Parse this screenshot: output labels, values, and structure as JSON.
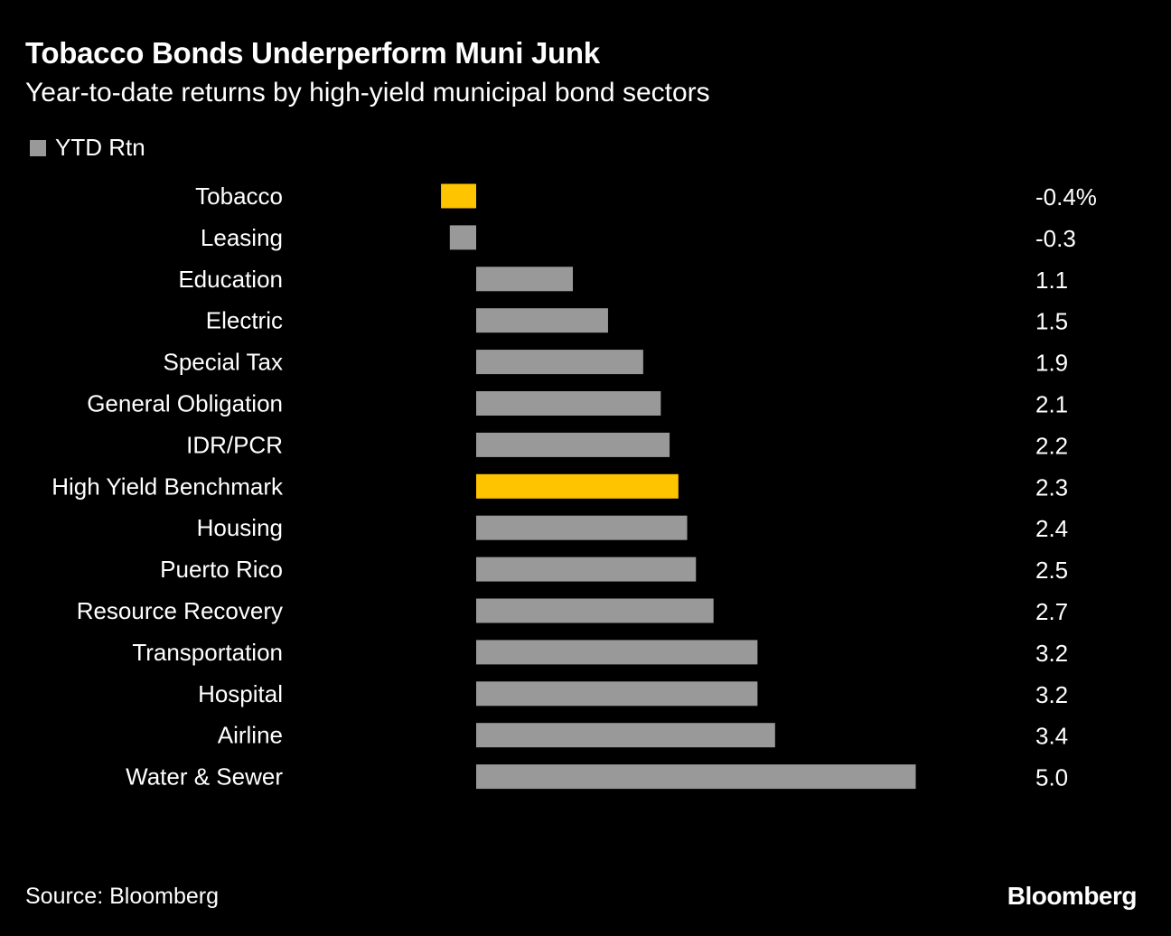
{
  "header": {
    "title": "Tobacco Bonds Underperform Muni Junk",
    "subtitle": "Year-to-date returns by high-yield municipal bond sectors"
  },
  "legend": {
    "label": "YTD Rtn",
    "color": "#999999"
  },
  "footer": {
    "source": "Source: Bloomberg",
    "logo": "Bloomberg"
  },
  "colors": {
    "bar": "#999999",
    "highlight": "#ffc400",
    "text": "#ffffff",
    "background": "#000000"
  },
  "chart_data": {
    "type": "bar",
    "orientation": "horizontal",
    "categories": [
      "Tobacco",
      "Leasing",
      "Education",
      "Electric",
      "Special Tax",
      "General Obligation",
      "IDR/PCR",
      "High Yield Benchmark",
      "Housing",
      "Puerto Rico",
      "Resource Recovery",
      "Transportation",
      "Hospital",
      "Airline",
      "Water & Sewer"
    ],
    "series": [
      {
        "name": "YTD Rtn",
        "values": [
          -0.4,
          -0.3,
          1.1,
          1.5,
          1.9,
          2.1,
          2.2,
          2.3,
          2.4,
          2.5,
          2.7,
          3.2,
          3.2,
          3.4,
          5.0
        ],
        "value_labels": [
          "-0.4%",
          "-0.3",
          "1.1",
          "1.5",
          "1.9",
          "2.1",
          "2.2",
          "2.3",
          "2.4",
          "2.5",
          "2.7",
          "3.2",
          "3.2",
          "3.4",
          "5.0"
        ]
      }
    ],
    "highlighted": [
      "Tobacco",
      "High Yield Benchmark"
    ],
    "xlim": [
      -0.4,
      5.0
    ],
    "grid": false,
    "legend_position": "top-left"
  }
}
